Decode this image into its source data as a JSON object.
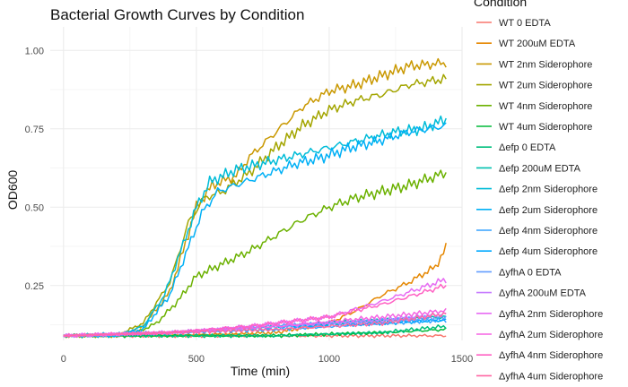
{
  "chart_data": {
    "type": "line",
    "title": "Bacterial Growth Curves by Condition",
    "xlabel": "Time (min)",
    "ylabel": "OD600",
    "xlim": [
      -50,
      1500
    ],
    "ylim": [
      0.075,
      1.075
    ],
    "x_ticks": [
      0,
      500,
      1000,
      1500
    ],
    "y_ticks": [
      0.25,
      0.5,
      0.75,
      1.0
    ],
    "y_tick_labels": [
      "0.25",
      "0.50",
      "0.75",
      "1.00"
    ],
    "grid": true,
    "legend_title": "Condition",
    "legend_position": "right",
    "series": [
      {
        "name": "WT 0 EDTA",
        "color": "#F8766D",
        "points": [
          [
            0,
            0.09
          ],
          [
            400,
            0.09
          ],
          [
            800,
            0.09
          ],
          [
            1200,
            0.09
          ],
          [
            1440,
            0.09
          ]
        ]
      },
      {
        "name": "WT 200uM EDTA",
        "color": "#E58700",
        "points": [
          [
            0,
            0.09
          ],
          [
            400,
            0.09
          ],
          [
            800,
            0.1
          ],
          [
            1000,
            0.13
          ],
          [
            1100,
            0.17
          ],
          [
            1200,
            0.22
          ],
          [
            1300,
            0.26
          ],
          [
            1400,
            0.31
          ],
          [
            1440,
            0.37
          ]
        ]
      },
      {
        "name": "WT 2nm Siderophore",
        "color": "#C99800",
        "points": [
          [
            0,
            0.09
          ],
          [
            200,
            0.09
          ],
          [
            300,
            0.12
          ],
          [
            400,
            0.23
          ],
          [
            450,
            0.36
          ],
          [
            500,
            0.5
          ],
          [
            560,
            0.57
          ],
          [
            650,
            0.6
          ],
          [
            700,
            0.66
          ],
          [
            800,
            0.74
          ],
          [
            900,
            0.82
          ],
          [
            1000,
            0.87
          ],
          [
            1100,
            0.89
          ],
          [
            1200,
            0.92
          ],
          [
            1300,
            0.95
          ],
          [
            1440,
            0.96
          ]
        ]
      },
      {
        "name": "WT 2um Siderophore",
        "color": "#A3A500",
        "points": [
          [
            0,
            0.09
          ],
          [
            200,
            0.09
          ],
          [
            300,
            0.13
          ],
          [
            400,
            0.26
          ],
          [
            470,
            0.45
          ],
          [
            530,
            0.53
          ],
          [
            600,
            0.55
          ],
          [
            650,
            0.58
          ],
          [
            700,
            0.61
          ],
          [
            800,
            0.69
          ],
          [
            900,
            0.76
          ],
          [
            1000,
            0.81
          ],
          [
            1100,
            0.84
          ],
          [
            1200,
            0.86
          ],
          [
            1300,
            0.89
          ],
          [
            1440,
            0.91
          ]
        ]
      },
      {
        "name": "WT 4nm Siderophore",
        "color": "#6BB100",
        "points": [
          [
            0,
            0.09
          ],
          [
            250,
            0.09
          ],
          [
            350,
            0.13
          ],
          [
            430,
            0.2
          ],
          [
            500,
            0.28
          ],
          [
            600,
            0.32
          ],
          [
            700,
            0.36
          ],
          [
            800,
            0.41
          ],
          [
            900,
            0.46
          ],
          [
            1000,
            0.5
          ],
          [
            1100,
            0.53
          ],
          [
            1200,
            0.55
          ],
          [
            1300,
            0.57
          ],
          [
            1440,
            0.61
          ]
        ]
      },
      {
        "name": "WT 4um Siderophore",
        "color": "#00BA38",
        "points": [
          [
            0,
            0.09
          ],
          [
            400,
            0.09
          ],
          [
            800,
            0.09
          ],
          [
            1200,
            0.1
          ],
          [
            1440,
            0.11
          ]
        ]
      },
      {
        "name": "Δefp 0 EDTA",
        "color": "#00BF7D",
        "points": [
          [
            0,
            0.09
          ],
          [
            400,
            0.09
          ],
          [
            800,
            0.09
          ],
          [
            1200,
            0.1
          ],
          [
            1440,
            0.12
          ]
        ]
      },
      {
        "name": "Δefp 200uM EDTA",
        "color": "#00C0AF",
        "points": [
          [
            0,
            0.09
          ],
          [
            400,
            0.1
          ],
          [
            800,
            0.12
          ],
          [
            1200,
            0.14
          ],
          [
            1440,
            0.15
          ]
        ]
      },
      {
        "name": "Δefp 2nm Siderophore",
        "color": "#00BCD8",
        "points": [
          [
            0,
            0.09
          ],
          [
            200,
            0.09
          ],
          [
            300,
            0.12
          ],
          [
            380,
            0.22
          ],
          [
            450,
            0.38
          ],
          [
            500,
            0.5
          ],
          [
            550,
            0.58
          ],
          [
            650,
            0.62
          ],
          [
            750,
            0.64
          ],
          [
            850,
            0.66
          ],
          [
            950,
            0.68
          ],
          [
            1050,
            0.7
          ],
          [
            1150,
            0.72
          ],
          [
            1250,
            0.74
          ],
          [
            1350,
            0.75
          ],
          [
            1440,
            0.78
          ]
        ]
      },
      {
        "name": "Δefp 2um Siderophore",
        "color": "#00B0F6",
        "points": [
          [
            0,
            0.09
          ],
          [
            200,
            0.09
          ],
          [
            300,
            0.11
          ],
          [
            400,
            0.22
          ],
          [
            460,
            0.35
          ],
          [
            520,
            0.48
          ],
          [
            580,
            0.55
          ],
          [
            680,
            0.58
          ],
          [
            780,
            0.61
          ],
          [
            880,
            0.64
          ],
          [
            980,
            0.66
          ],
          [
            1080,
            0.69
          ],
          [
            1180,
            0.71
          ],
          [
            1300,
            0.74
          ],
          [
            1440,
            0.76
          ]
        ]
      },
      {
        "name": "Δefp 4nm Siderophore",
        "color": "#35A2FF",
        "points": [
          [
            0,
            0.09
          ],
          [
            400,
            0.1
          ],
          [
            800,
            0.11
          ],
          [
            1200,
            0.13
          ],
          [
            1440,
            0.14
          ]
        ]
      },
      {
        "name": "Δefp 4um Siderophore",
        "color": "#00A9FF",
        "points": [
          [
            0,
            0.09
          ],
          [
            400,
            0.1
          ],
          [
            800,
            0.12
          ],
          [
            1200,
            0.13
          ],
          [
            1440,
            0.14
          ]
        ]
      },
      {
        "name": "ΔyfhA 0 EDTA",
        "color": "#619CFF",
        "points": [
          [
            0,
            0.09
          ],
          [
            400,
            0.1
          ],
          [
            800,
            0.12
          ],
          [
            1200,
            0.14
          ],
          [
            1440,
            0.15
          ]
        ]
      },
      {
        "name": "ΔyfhA 200uM EDTA",
        "color": "#C77CFF",
        "points": [
          [
            0,
            0.09
          ],
          [
            400,
            0.1
          ],
          [
            800,
            0.12
          ],
          [
            1200,
            0.14
          ],
          [
            1440,
            0.16
          ]
        ]
      },
      {
        "name": "ΔyfhA 2nm Siderophore",
        "color": "#E76BF3",
        "points": [
          [
            0,
            0.09
          ],
          [
            400,
            0.1
          ],
          [
            700,
            0.12
          ],
          [
            1000,
            0.15
          ],
          [
            1200,
            0.2
          ],
          [
            1440,
            0.27
          ]
        ]
      },
      {
        "name": "ΔyfhA 2um Siderophore",
        "color": "#F564E3",
        "points": [
          [
            0,
            0.09
          ],
          [
            400,
            0.1
          ],
          [
            800,
            0.12
          ],
          [
            1200,
            0.15
          ],
          [
            1440,
            0.17
          ]
        ]
      },
      {
        "name": "ΔyfhA 4nm Siderophore",
        "color": "#FF61C3",
        "points": [
          [
            0,
            0.09
          ],
          [
            400,
            0.1
          ],
          [
            700,
            0.12
          ],
          [
            1000,
            0.15
          ],
          [
            1200,
            0.19
          ],
          [
            1440,
            0.25
          ]
        ]
      },
      {
        "name": "ΔyfhA 4um Siderophore",
        "color": "#FF67A4",
        "points": [
          [
            0,
            0.09
          ],
          [
            400,
            0.1
          ],
          [
            800,
            0.11
          ],
          [
            1200,
            0.13
          ],
          [
            1440,
            0.16
          ]
        ]
      }
    ]
  }
}
